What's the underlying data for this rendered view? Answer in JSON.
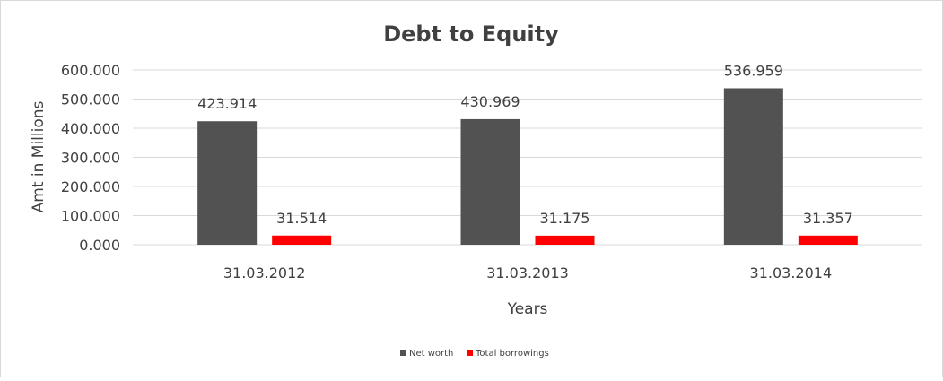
{
  "chart_data": {
    "type": "bar",
    "title": "Debt to Equity",
    "xlabel": "Years",
    "ylabel": "Amt in Millions",
    "categories": [
      "31.03.2012",
      "31.03.2013",
      "31.03.2014"
    ],
    "series": [
      {
        "name": "Net worth",
        "values": [
          423.914,
          430.969,
          536.959
        ],
        "labels": [
          "423.914",
          "430.969",
          "536.959"
        ],
        "color": "#525252"
      },
      {
        "name": "Total borrowings",
        "values": [
          31.514,
          31.175,
          31.357
        ],
        "labels": [
          "31.514",
          "31.175",
          "31.357"
        ],
        "color": "#ff0000"
      }
    ],
    "ylim": [
      0,
      600
    ],
    "yticks": [
      0,
      100,
      200,
      300,
      400,
      500,
      600
    ],
    "ytick_labels": [
      "0.000",
      "100.000",
      "200.000",
      "300.000",
      "400.000",
      "500.000",
      "600.000"
    ],
    "grid": true,
    "legend": "bottom"
  }
}
